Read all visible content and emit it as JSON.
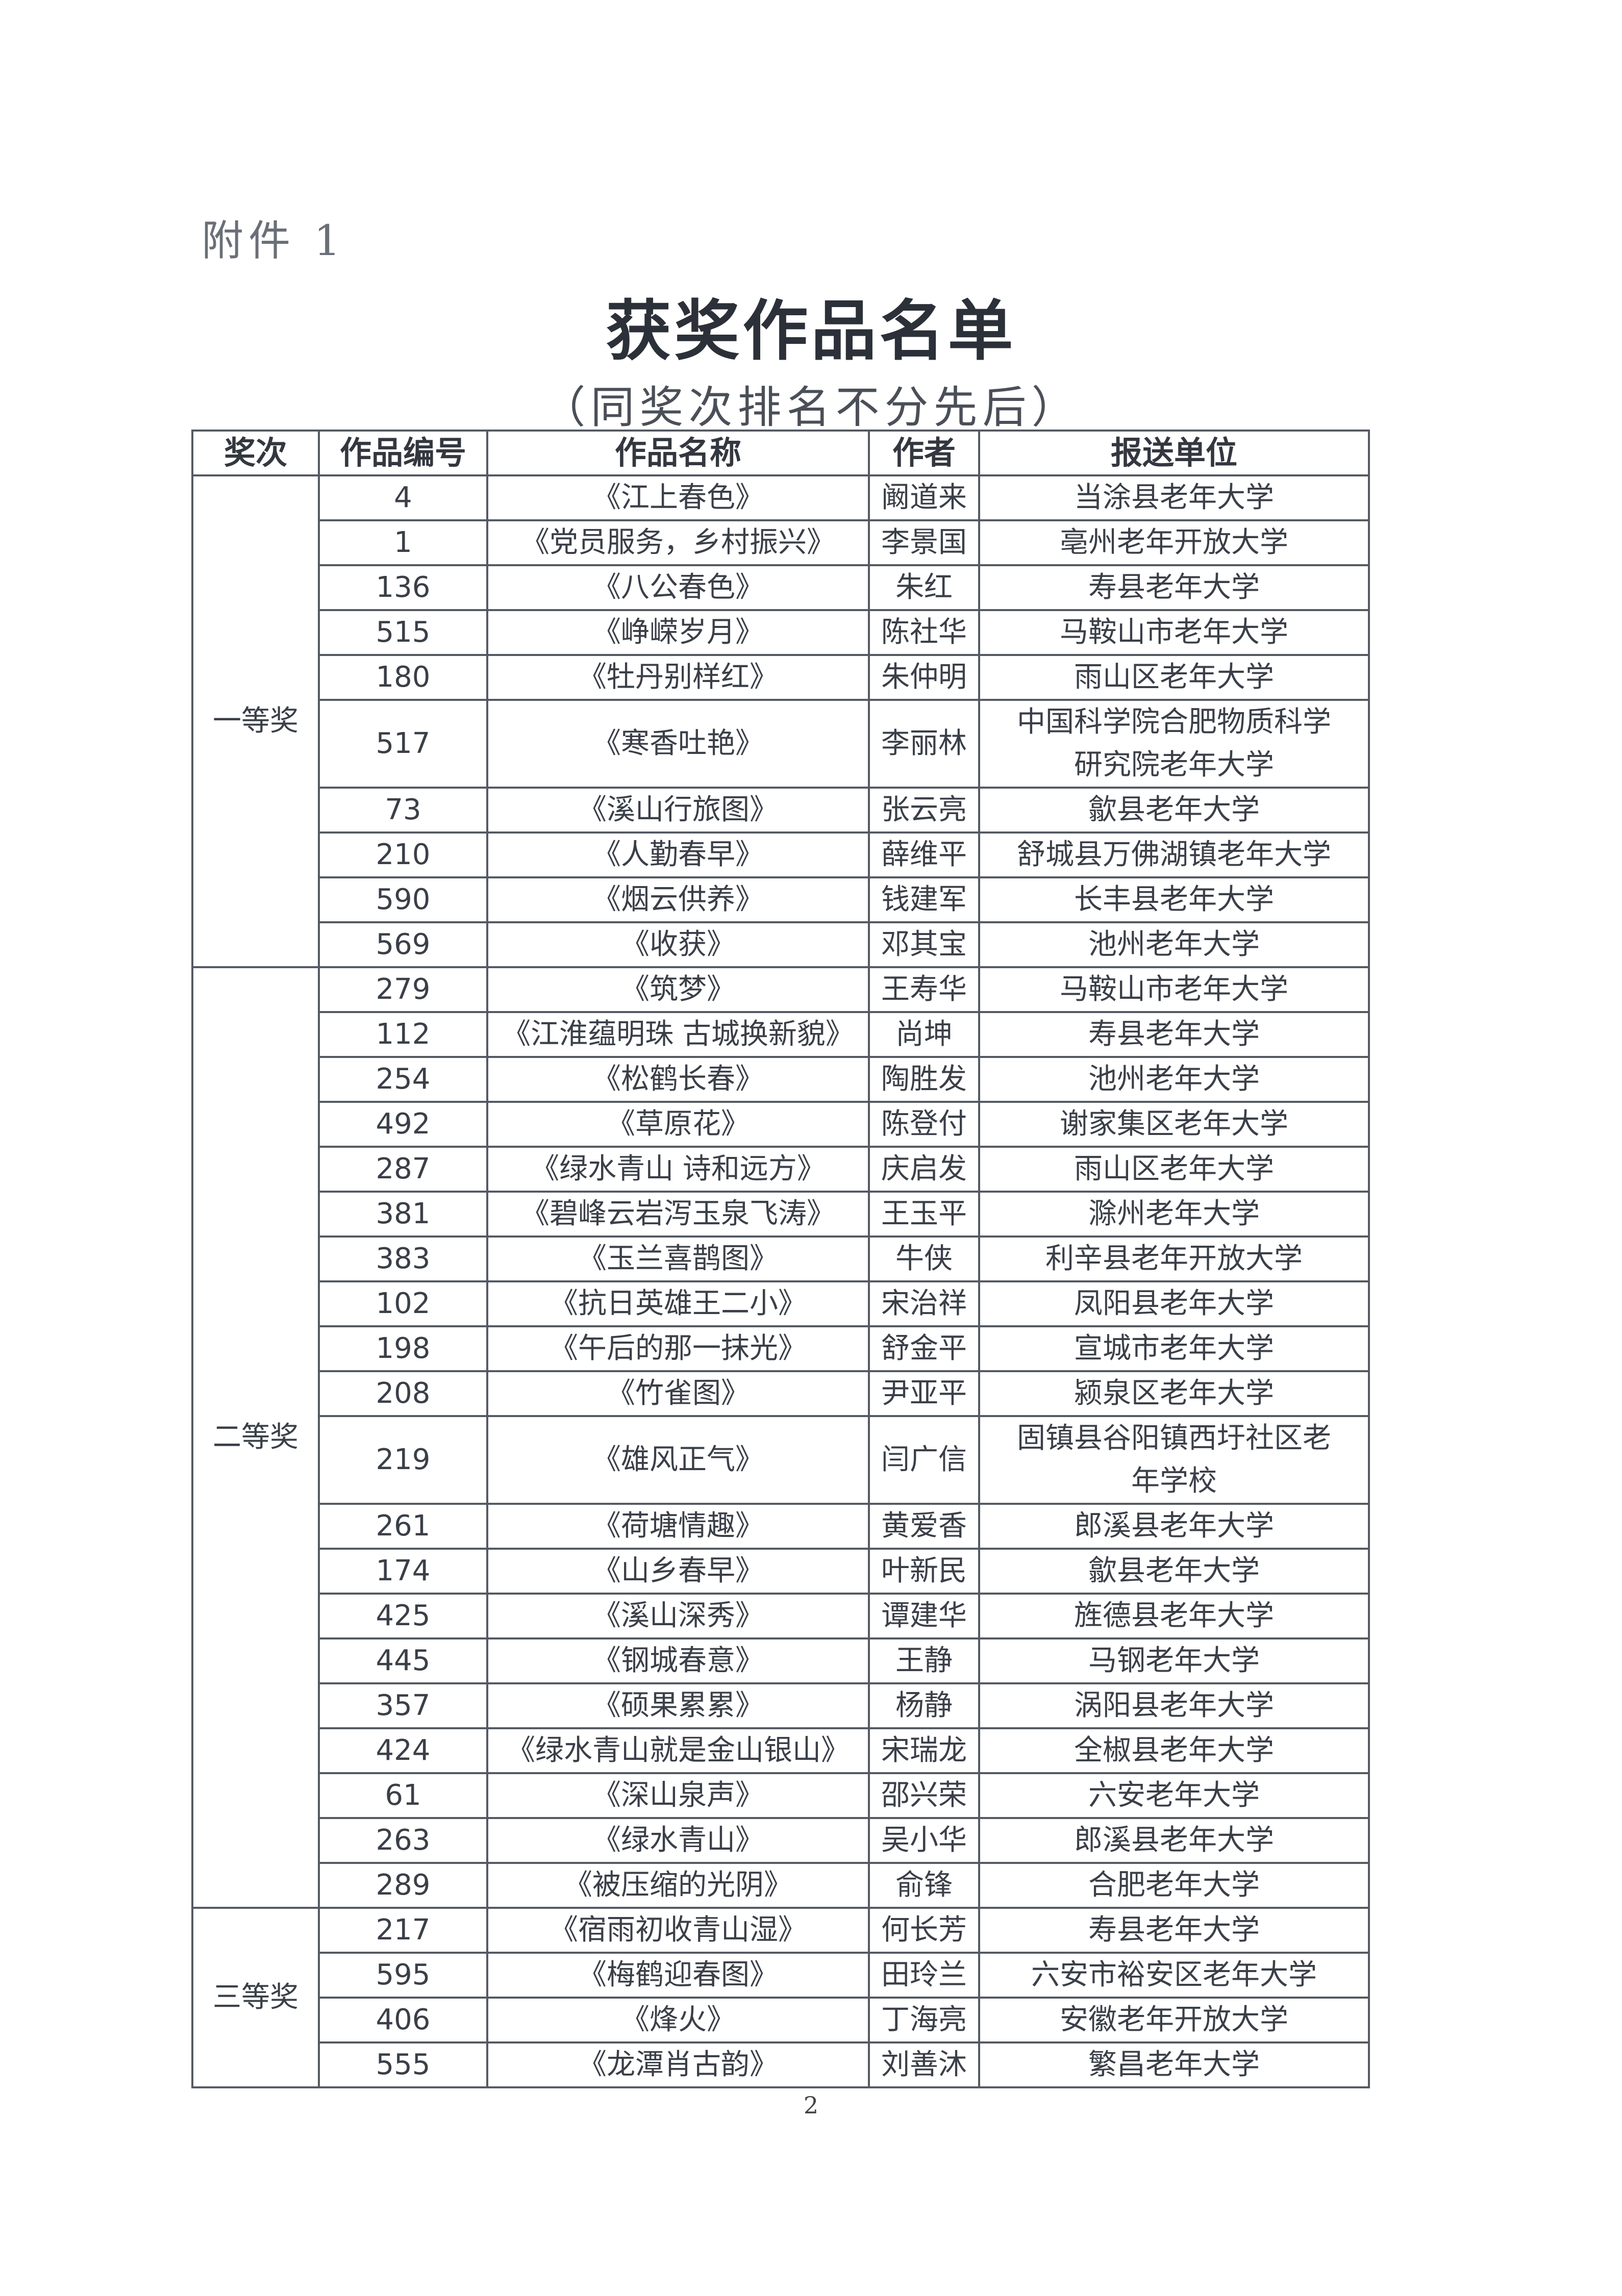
{
  "attachment_label": "附件 1",
  "title": "获奖作品名单",
  "subtitle": "（同奖次排名不分先后）",
  "table": {
    "headers": [
      "奖次",
      "作品编号",
      "作品名称",
      "作者",
      "报送单位"
    ],
    "groups": [
      {
        "tier": "一等奖",
        "rows": [
          [
            "4",
            "《江上春色》",
            "阚道来",
            "当涂县老年大学"
          ],
          [
            "1",
            "《党员服务，乡村振兴》",
            "李景国",
            "亳州老年开放大学"
          ],
          [
            "136",
            "《八公春色》",
            "朱红",
            "寿县老年大学"
          ],
          [
            "515",
            "《峥嵘岁月》",
            "陈社华",
            "马鞍山市老年大学"
          ],
          [
            "180",
            "《牡丹别样红》",
            "朱仲明",
            "雨山区老年大学"
          ],
          [
            "517",
            "《寒香吐艳》",
            "李丽林",
            "中国科学院合肥物质科学研究院老年大学"
          ],
          [
            "73",
            "《溪山行旅图》",
            "张云亮",
            "歙县老年大学"
          ],
          [
            "210",
            "《人勤春早》",
            "薛维平",
            "舒城县万佛湖镇老年大学"
          ],
          [
            "590",
            "《烟云供养》",
            "钱建军",
            "长丰县老年大学"
          ],
          [
            "569",
            "《收获》",
            "邓其宝",
            "池州老年大学"
          ]
        ]
      },
      {
        "tier": "二等奖",
        "rows": [
          [
            "279",
            "《筑梦》",
            "王寿华",
            "马鞍山市老年大学"
          ],
          [
            "112",
            "《江淮蕴明珠 古城换新貌》",
            "尚坤",
            "寿县老年大学"
          ],
          [
            "254",
            "《松鹤长春》",
            "陶胜发",
            "池州老年大学"
          ],
          [
            "492",
            "《草原花》",
            "陈登付",
            "谢家集区老年大学"
          ],
          [
            "287",
            "《绿水青山 诗和远方》",
            "庆启发",
            "雨山区老年大学"
          ],
          [
            "381",
            "《碧峰云岩泻玉泉飞涛》",
            "王玉平",
            "滁州老年大学"
          ],
          [
            "383",
            "《玉兰喜鹊图》",
            "牛侠",
            "利辛县老年开放大学"
          ],
          [
            "102",
            "《抗日英雄王二小》",
            "宋治祥",
            "凤阳县老年大学"
          ],
          [
            "198",
            "《午后的那一抹光》",
            "舒金平",
            "宣城市老年大学"
          ],
          [
            "208",
            "《竹雀图》",
            "尹亚平",
            "颍泉区老年大学"
          ],
          [
            "219",
            "《雄风正气》",
            "闫广信",
            "固镇县谷阳镇西圩社区老年学校"
          ],
          [
            "261",
            "《荷塘情趣》",
            "黄爱香",
            "郎溪县老年大学"
          ],
          [
            "174",
            "《山乡春早》",
            "叶新民",
            "歙县老年大学"
          ],
          [
            "425",
            "《溪山深秀》",
            "谭建华",
            "旌德县老年大学"
          ],
          [
            "445",
            "《钢城春意》",
            "王静",
            "马钢老年大学"
          ],
          [
            "357",
            "《硕果累累》",
            "杨静",
            "涡阳县老年大学"
          ],
          [
            "424",
            "《绿水青山就是金山银山》",
            "宋瑞龙",
            "全椒县老年大学"
          ],
          [
            "61",
            "《深山泉声》",
            "邵兴荣",
            "六安老年大学"
          ],
          [
            "263",
            "《绿水青山》",
            "吴小华",
            "郎溪县老年大学"
          ],
          [
            "289",
            "《被压缩的光阴》",
            "俞锋",
            "合肥老年大学"
          ]
        ]
      },
      {
        "tier": "三等奖",
        "rows": [
          [
            "217",
            "《宿雨初收青山湿》",
            "何长芳",
            "寿县老年大学"
          ],
          [
            "595",
            "《梅鹤迎春图》",
            "田玲兰",
            "六安市裕安区老年大学"
          ],
          [
            "406",
            "《烽火》",
            "丁海亮",
            "安徽老年开放大学"
          ],
          [
            "555",
            "《龙潭肖古韵》",
            "刘善沐",
            "繁昌老年大学"
          ]
        ]
      }
    ]
  },
  "page_number": "2"
}
